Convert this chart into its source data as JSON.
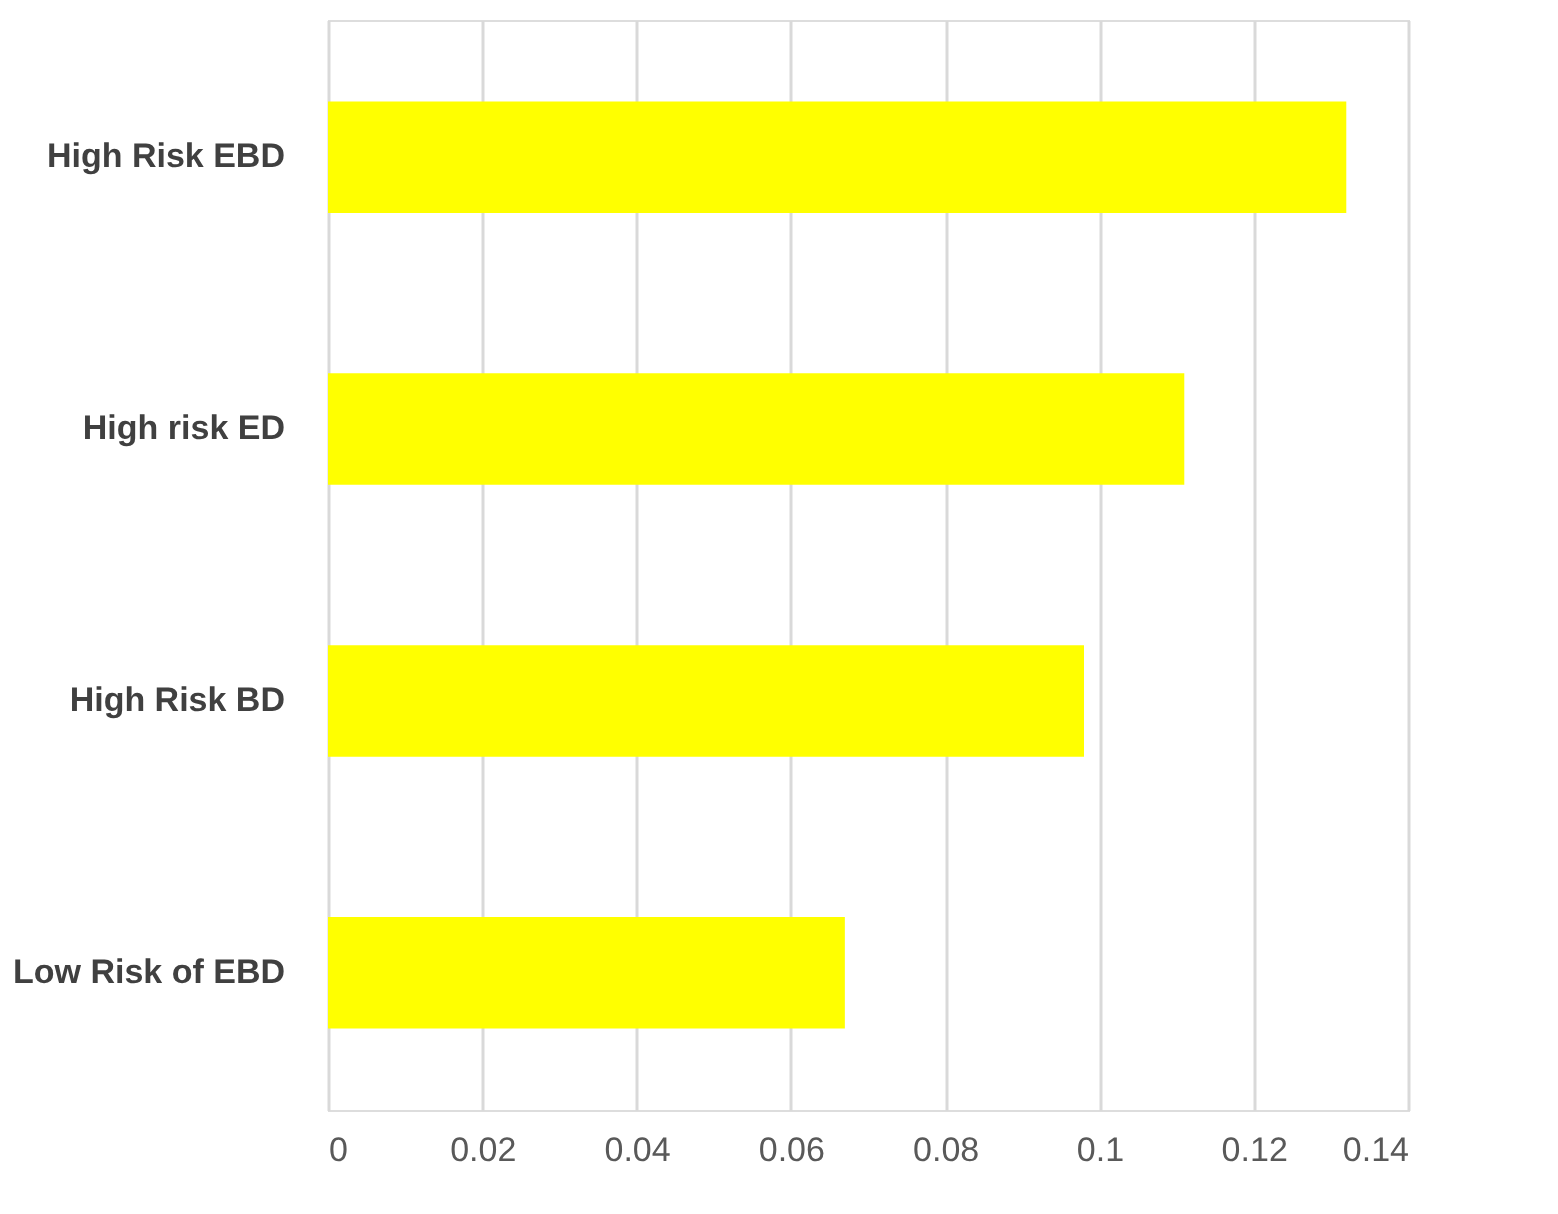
{
  "chart_data": {
    "type": "bar",
    "orientation": "horizontal",
    "categories": [
      "High Risk EBD",
      "High risk ED",
      "High Risk BD",
      "Low Risk of EBD"
    ],
    "values": [
      0.132,
      0.111,
      0.098,
      0.067
    ],
    "color": "#ffff00",
    "xlim": [
      0,
      0.14
    ],
    "xticks": [
      0,
      0.02,
      0.04,
      0.06,
      0.08,
      0.1,
      0.12,
      0.14
    ],
    "grid": "x"
  }
}
